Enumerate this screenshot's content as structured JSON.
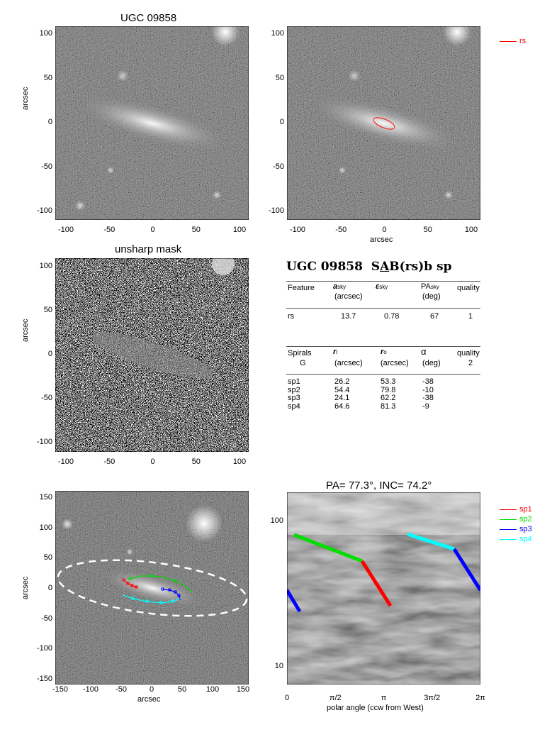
{
  "panels": {
    "top_left": {
      "title": "UGC 09858",
      "ylabel": "arcsec",
      "xticks": [
        "-100",
        "-50",
        "0",
        "50",
        "100"
      ],
      "yticks": [
        "100",
        "50",
        "0",
        "-50",
        "-100"
      ]
    },
    "top_right": {
      "xlabel": "arcsec",
      "xticks": [
        "-100",
        "-50",
        "0",
        "50",
        "100"
      ],
      "yticks": [
        "100",
        "50",
        "0",
        "-50",
        "-100"
      ],
      "legend": [
        {
          "label": "rs",
          "color": "#ff0000"
        }
      ]
    },
    "mid_left": {
      "title": "unsharp mask",
      "ylabel": "arcsec",
      "xticks": [
        "-100",
        "-50",
        "0",
        "50",
        "100"
      ],
      "yticks": [
        "100",
        "50",
        "0",
        "-50",
        "-100"
      ]
    },
    "bottom_left": {
      "xlabel": "arcsec",
      "ylabel": "arcsec",
      "xticks": [
        "-150",
        "-100",
        "-50",
        "0",
        "50",
        "100",
        "150"
      ],
      "yticks": [
        "150",
        "100",
        "50",
        "0",
        "-50",
        "-100",
        "-150"
      ]
    },
    "bottom_right": {
      "title": "PA=  77.3°, INC=  74.2°",
      "xlabel": "polar angle (ccw from West)",
      "xticks": [
        "0",
        "π/2",
        "π",
        "3π/2",
        "2π"
      ],
      "yticks": [
        "100",
        "10"
      ],
      "legend": [
        {
          "label": "sp1",
          "color": "#ff0000"
        },
        {
          "label": "sp2",
          "color": "#00dd00"
        },
        {
          "label": "sp3",
          "color": "#0000ff"
        },
        {
          "label": "sp4",
          "color": "#00ffff"
        }
      ]
    }
  },
  "info": {
    "galaxy": "UGC 09858",
    "morph_pre": "S",
    "morph_ul": "A",
    "morph_post": "B(rs)b sp",
    "features": {
      "headers": {
        "feature": "Feature",
        "a": "a",
        "a_sub": "sky",
        "a_unit": "(arcsec)",
        "e": "ε",
        "e_sub": "sky",
        "pa": "PA",
        "pa_sub": "sky",
        "pa_unit": "(deg)",
        "quality": "quality"
      },
      "rows": [
        {
          "name": "rs",
          "a": "13.7",
          "e": "0.78",
          "pa": "67",
          "q": "1"
        }
      ]
    },
    "spirals": {
      "headers": {
        "spirals": "Spirals",
        "g": "G",
        "ri": "r",
        "ri_sub": "i",
        "ri_unit": "(arcsec)",
        "ro": "r",
        "ro_sub": "o",
        "ro_unit": "(arcsec)",
        "alpha": "α",
        "alpha_unit": "(deg)",
        "quality": "quality",
        "quality_val": "2"
      },
      "rows": [
        {
          "name": "sp1",
          "ri": "26.2",
          "ro": "53.3",
          "alpha": "-38"
        },
        {
          "name": "sp2",
          "ri": "54.4",
          "ro": "79.8",
          "alpha": "-10"
        },
        {
          "name": "sp3",
          "ri": "24.1",
          "ro": "62.2",
          "alpha": "-38"
        },
        {
          "name": "sp4",
          "ri": "64.6",
          "ro": "81.3",
          "alpha": "-9"
        }
      ]
    }
  },
  "colors": {
    "rs": "#ff0000",
    "sp1": "#ff0000",
    "sp2": "#00dd00",
    "sp3": "#0000ff",
    "sp4": "#00ffff"
  }
}
